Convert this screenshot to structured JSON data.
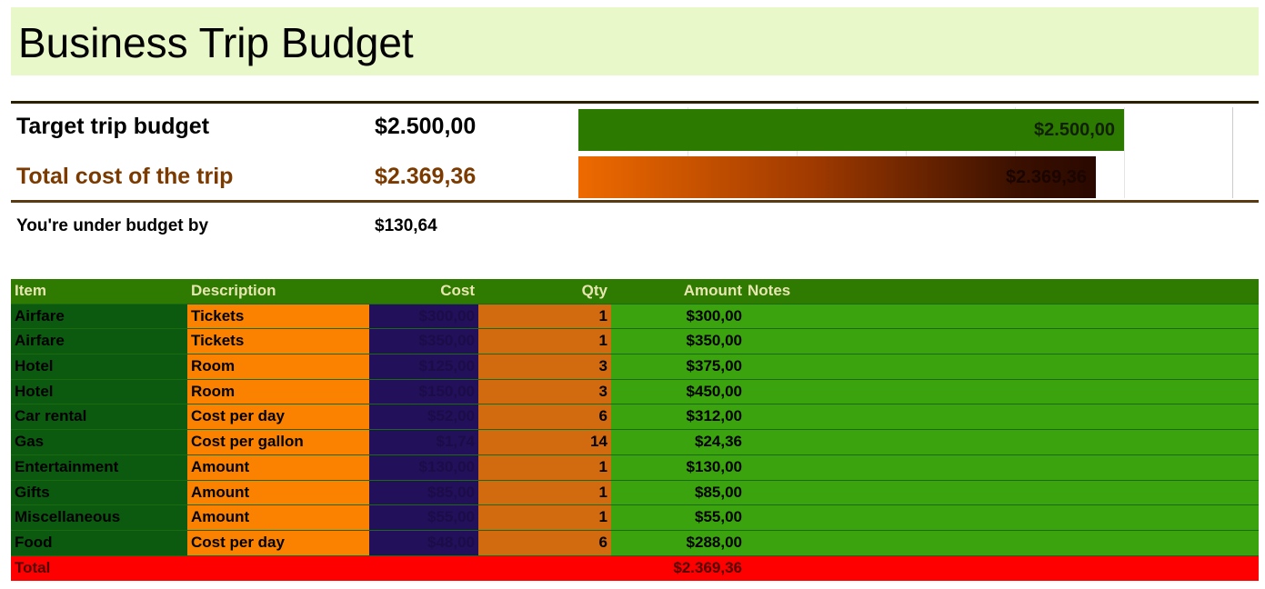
{
  "title": "Business Trip Budget",
  "summary": {
    "target_label": "Target trip budget",
    "target_value": "$2.500,00",
    "total_label": "Total cost of the trip",
    "total_value": "$2.369,36",
    "under_label": "You're under budget by",
    "under_value": "$130,64"
  },
  "bars": {
    "target_label": "$2.500,00",
    "total_label": "$2.369,36",
    "target_fraction": 0.8333,
    "total_fraction": 0.7898
  },
  "table": {
    "headers": {
      "item": "Item",
      "description": "Description",
      "cost": "Cost",
      "qty": "Qty",
      "amount": "Amount",
      "notes": "Notes"
    },
    "rows": [
      {
        "item": "Airfare",
        "description": "Tickets",
        "cost": "$300,00",
        "qty": "1",
        "amount": "$300,00"
      },
      {
        "item": "Airfare",
        "description": "Tickets",
        "cost": "$350,00",
        "qty": "1",
        "amount": "$350,00"
      },
      {
        "item": "Hotel",
        "description": "Room",
        "cost": "$125,00",
        "qty": "3",
        "amount": "$375,00"
      },
      {
        "item": "Hotel",
        "description": "Room",
        "cost": "$150,00",
        "qty": "3",
        "amount": "$450,00"
      },
      {
        "item": "Car rental",
        "description": "Cost per day",
        "cost": "$52,00",
        "qty": "6",
        "amount": "$312,00"
      },
      {
        "item": "Gas",
        "description": "Cost per gallon",
        "cost": "$1,74",
        "qty": "14",
        "amount": "$24,36"
      },
      {
        "item": "Entertainment",
        "description": "Amount",
        "cost": "$130,00",
        "qty": "1",
        "amount": "$130,00"
      },
      {
        "item": "Gifts",
        "description": "Amount",
        "cost": "$85,00",
        "qty": "1",
        "amount": "$85,00"
      },
      {
        "item": "Miscellaneous",
        "description": "Amount",
        "cost": "$55,00",
        "qty": "1",
        "amount": "$55,00"
      },
      {
        "item": "Food",
        "description": "Cost per day",
        "cost": "$48,00",
        "qty": "6",
        "amount": "$288,00"
      }
    ],
    "total_label": "Total",
    "total_amount": "$2.369,36"
  }
}
